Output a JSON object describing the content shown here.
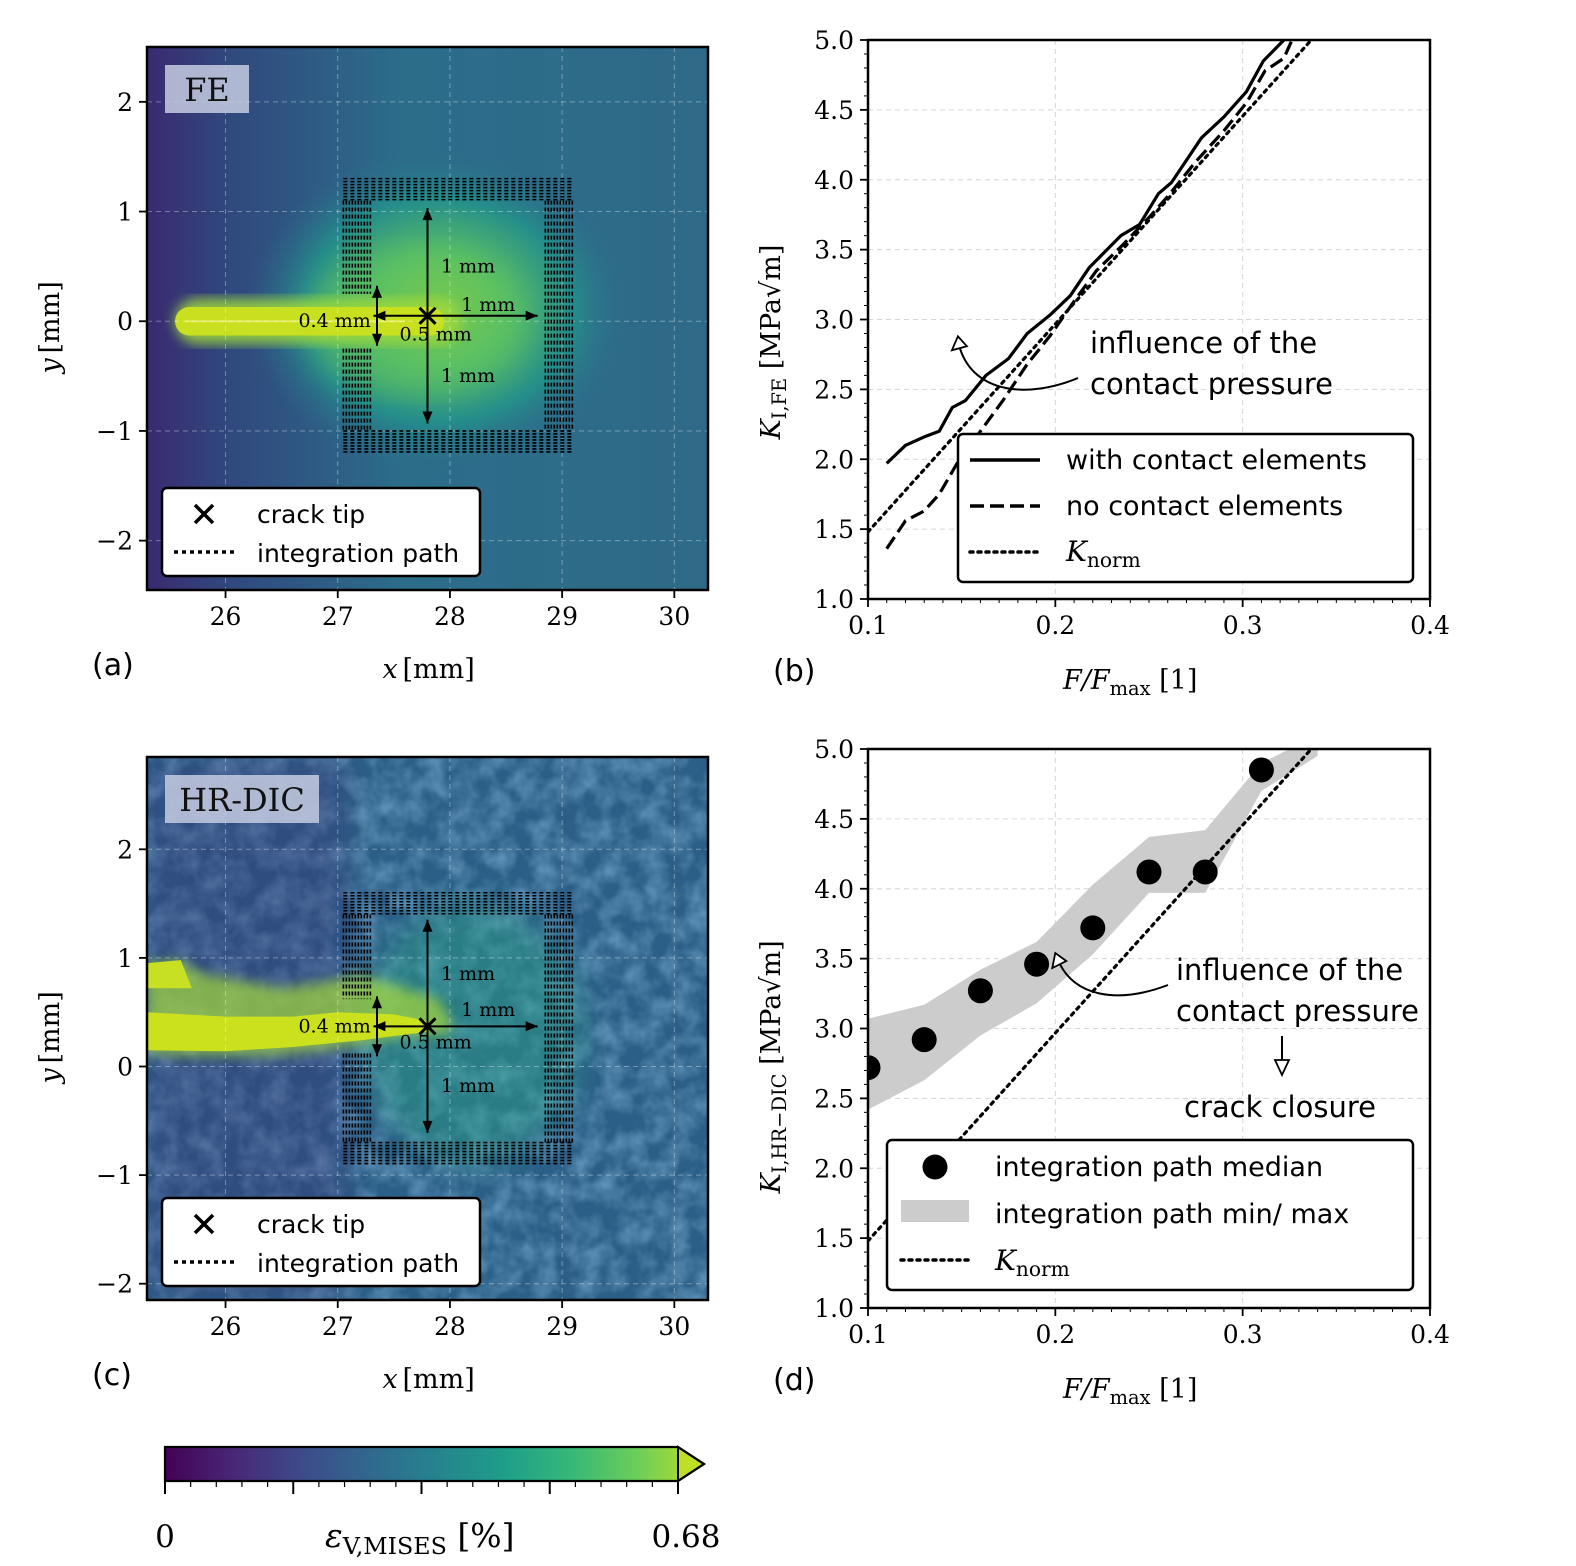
{
  "chart_data": [
    {
      "id": "a",
      "type": "heatmap",
      "panel_label": "(a)",
      "badge": "FE",
      "xlabel_var": "x",
      "xlabel_unit": "[mm]",
      "ylabel_var": "y",
      "ylabel_unit": "[mm]",
      "xlim": [
        25.3,
        30.3
      ],
      "ylim": [
        -2.45,
        2.5
      ],
      "xticks": [
        26,
        27,
        28,
        29,
        30
      ],
      "xtick_labels": [
        "26",
        "27",
        "28",
        "29",
        "30"
      ],
      "yticks": [
        -2,
        -1,
        0,
        1,
        2
      ],
      "ytick_labels": [
        "−2",
        "−1",
        "0",
        "1",
        "2"
      ],
      "grid": true,
      "crack_tip": [
        27.8,
        0.05
      ],
      "crack_band": {
        "x_start": 25.55,
        "y_center": 0.0,
        "half_width": 0.13
      },
      "integration_path": {
        "x_outer": [
          27.05,
          29.1
        ],
        "y_outer": [
          -1.2,
          1.3
        ],
        "x_inner": [
          27.3,
          28.85
        ],
        "y_inner": [
          -1.0,
          1.1
        ],
        "slot_y": [
          -0.25,
          0.25
        ]
      },
      "annotations": [
        {
          "text": "1 mm",
          "x": 27.92,
          "y": 0.5
        },
        {
          "text": "1 mm",
          "x": 28.1,
          "y": 0.15
        },
        {
          "text": "0.4 mm",
          "x": 26.65,
          "y": 0.0
        },
        {
          "text": "0.5 mm",
          "x": 27.55,
          "y": -0.12
        },
        {
          "text": "1 mm",
          "x": 27.92,
          "y": -0.5
        }
      ],
      "legend": {
        "position": "lower-left",
        "entries": [
          "crack tip",
          "integration path"
        ]
      }
    },
    {
      "id": "b",
      "type": "line",
      "panel_label": "(b)",
      "xlabel": "F/Fmax [1]",
      "ylabel": "KI,FE [MPa√m]",
      "xlim": [
        0.1,
        0.4
      ],
      "ylim": [
        1.0,
        5.0
      ],
      "xticks": [
        0.1,
        0.2,
        0.3,
        0.4
      ],
      "xtick_labels": [
        "0.1",
        "0.2",
        "0.3",
        "0.4"
      ],
      "yticks": [
        1.0,
        1.5,
        2.0,
        2.5,
        3.0,
        3.5,
        4.0,
        4.5,
        5.0
      ],
      "ytick_labels": [
        "1.0",
        "1.5",
        "2.0",
        "2.5",
        "3.0",
        "3.5",
        "4.0",
        "4.5",
        "5.0"
      ],
      "grid": true,
      "series": [
        {
          "name": "with contact elements",
          "style": "solid",
          "x": [
            0.11,
            0.12,
            0.13,
            0.138,
            0.145,
            0.152,
            0.163,
            0.175,
            0.185,
            0.197,
            0.208,
            0.218,
            0.235,
            0.245,
            0.255,
            0.262,
            0.278,
            0.29,
            0.302,
            0.311,
            0.322,
            0.328
          ],
          "y": [
            1.97,
            2.1,
            2.16,
            2.2,
            2.37,
            2.42,
            2.6,
            2.72,
            2.9,
            3.03,
            3.17,
            3.37,
            3.6,
            3.68,
            3.9,
            3.98,
            4.3,
            4.45,
            4.63,
            4.85,
            5.0,
            5.1
          ]
        },
        {
          "name": "no contact elements",
          "style": "dashed",
          "x": [
            0.11,
            0.12,
            0.13,
            0.138,
            0.148,
            0.16,
            0.172,
            0.185,
            0.197,
            0.21,
            0.222,
            0.235,
            0.25,
            0.26,
            0.275,
            0.29,
            0.302,
            0.312,
            0.322,
            0.328
          ],
          "y": [
            1.36,
            1.56,
            1.63,
            1.75,
            1.98,
            2.2,
            2.42,
            2.68,
            2.88,
            3.13,
            3.35,
            3.52,
            3.73,
            3.88,
            4.13,
            4.35,
            4.55,
            4.78,
            4.87,
            5.05
          ]
        },
        {
          "name": "Knorm",
          "style": "dotted",
          "x": [
            0.1,
            0.34
          ],
          "y": [
            1.48,
            5.05
          ]
        }
      ],
      "annotations": [
        {
          "text_lines": [
            "influence of the",
            "contact pressure"
          ],
          "arrow_to": [
            0.148,
            2.88
          ]
        }
      ],
      "legend": {
        "position": "lower-right",
        "entries": [
          "with contact elements",
          "no contact elements",
          "Knorm"
        ]
      }
    },
    {
      "id": "c",
      "type": "heatmap",
      "panel_label": "(c)",
      "badge": "HR-DIC",
      "xlabel_var": "x",
      "xlabel_unit": "[mm]",
      "ylabel_var": "y",
      "ylabel_unit": "[mm]",
      "xlim": [
        25.3,
        30.3
      ],
      "ylim": [
        -2.15,
        2.85
      ],
      "xticks": [
        26,
        27,
        28,
        29,
        30
      ],
      "xtick_labels": [
        "26",
        "27",
        "28",
        "29",
        "30"
      ],
      "yticks": [
        -2,
        -1,
        0,
        1,
        2
      ],
      "ytick_labels": [
        "−2",
        "−1",
        "0",
        "1",
        "2"
      ],
      "grid": true,
      "crack_tip": [
        27.8,
        0.37
      ],
      "integration_path": {
        "x_outer": [
          27.05,
          29.1
        ],
        "y_outer": [
          -0.9,
          1.6
        ],
        "x_inner": [
          27.3,
          28.85
        ],
        "y_inner": [
          -0.7,
          1.4
        ],
        "slot_y": [
          0.12,
          0.62
        ]
      },
      "annotations": [
        {
          "text": "1 mm",
          "x": 27.92,
          "y": 0.85
        },
        {
          "text": "1 mm",
          "x": 28.1,
          "y": 0.52
        },
        {
          "text": "0.4 mm",
          "x": 26.65,
          "y": 0.37
        },
        {
          "text": "0.5 mm",
          "x": 27.55,
          "y": 0.22
        },
        {
          "text": "1 mm",
          "x": 27.92,
          "y": -0.18
        }
      ],
      "legend": {
        "position": "lower-left",
        "entries": [
          "crack tip",
          "integration path"
        ]
      }
    },
    {
      "id": "d",
      "type": "scatter",
      "panel_label": "(d)",
      "xlabel": "F/Fmax [1]",
      "ylabel": "KI,HR−DIC [MPa√m]",
      "xlim": [
        0.1,
        0.4
      ],
      "ylim": [
        1.0,
        5.0
      ],
      "xticks": [
        0.1,
        0.2,
        0.3,
        0.4
      ],
      "xtick_labels": [
        "0.1",
        "0.2",
        "0.3",
        "0.4"
      ],
      "yticks": [
        1.0,
        1.5,
        2.0,
        2.5,
        3.0,
        3.5,
        4.0,
        4.5,
        5.0
      ],
      "ytick_labels": [
        "1.0",
        "1.5",
        "2.0",
        "2.5",
        "3.0",
        "3.5",
        "4.0",
        "4.5",
        "5.0"
      ],
      "grid": true,
      "series": [
        {
          "name": "integration path median",
          "style": "marker",
          "x": [
            0.1,
            0.13,
            0.16,
            0.19,
            0.22,
            0.25,
            0.28,
            0.31
          ],
          "y": [
            2.72,
            2.92,
            3.27,
            3.46,
            3.72,
            4.12,
            4.12,
            4.85
          ]
        },
        {
          "name": "integration path min/ max",
          "style": "band",
          "x": [
            0.1,
            0.13,
            0.16,
            0.19,
            0.22,
            0.25,
            0.28,
            0.31,
            0.34
          ],
          "y_min": [
            2.42,
            2.63,
            2.95,
            3.18,
            3.53,
            3.97,
            3.97,
            4.7,
            4.95
          ],
          "y_max": [
            3.07,
            3.17,
            3.42,
            3.62,
            4.03,
            4.37,
            4.42,
            4.9,
            5.1
          ]
        },
        {
          "name": "Knorm",
          "style": "dotted",
          "x": [
            0.1,
            0.34
          ],
          "y": [
            1.48,
            5.05
          ]
        }
      ],
      "annotations": [
        {
          "text_lines": [
            "influence of the",
            "contact pressure"
          ],
          "arrow_to": [
            0.2,
            3.54
          ]
        },
        {
          "text": "crack closure"
        }
      ],
      "legend": {
        "position": "lower-right",
        "entries": [
          "integration path median",
          "integration path min/ max",
          "Knorm"
        ]
      }
    }
  ],
  "colorbar": {
    "min_label": "0",
    "max_label": "0.68",
    "label_main": "ε",
    "label_sub": "V,MISES",
    "label_unit": "[%]",
    "ticks": [
      0,
      0.17,
      0.34,
      0.51,
      0.68
    ],
    "colormap": "viridis"
  },
  "colors": {
    "viridis_low": "#440154",
    "viridis_mid": "#21918c",
    "viridis_high": "#bddf26",
    "band_gray": "#cccccc",
    "ink": "#000000"
  }
}
